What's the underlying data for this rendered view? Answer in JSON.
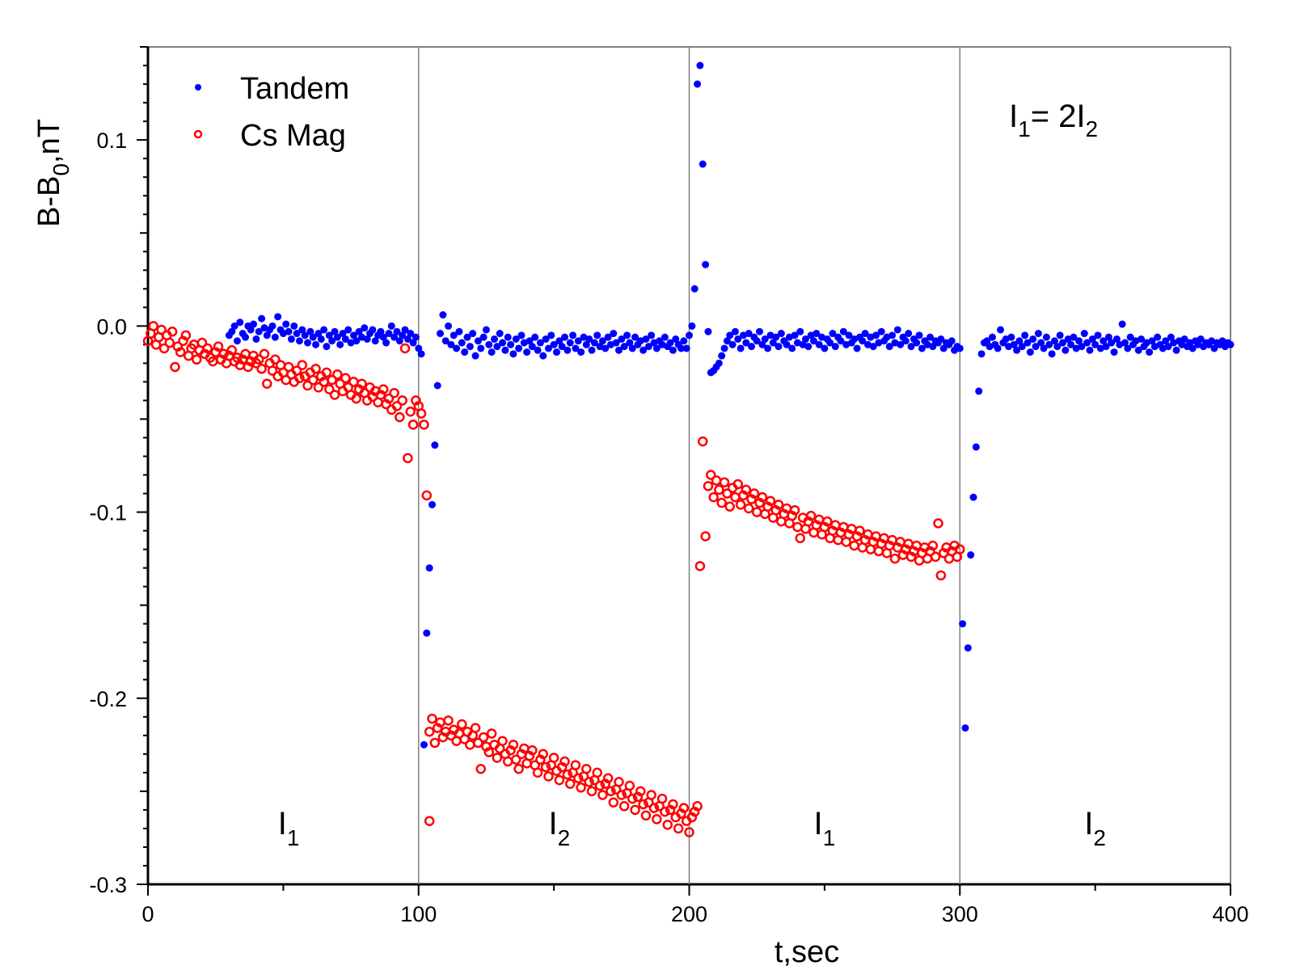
{
  "chart_data": {
    "type": "scatter",
    "title": "",
    "xlabel": "t,sec",
    "ylabel": {
      "main": "B-B",
      "sub": "0",
      "tail": ",nT"
    },
    "xlim": [
      0,
      400
    ],
    "ylim": [
      -0.3,
      0.15
    ],
    "xticks": [
      0,
      100,
      200,
      300,
      400
    ],
    "xtick_labels": [
      "0",
      "100",
      "200",
      "300",
      "400"
    ],
    "yticks": [
      -0.3,
      -0.2,
      -0.1,
      0.0,
      0.1
    ],
    "ytick_labels": [
      "-0.3",
      "-0.2",
      "-0.1",
      "0.0",
      "0.1"
    ],
    "vlines": [
      100,
      200,
      300
    ],
    "grid": false,
    "legend_position": "top-left",
    "series": [
      {
        "name": "Tandem",
        "marker": "filled-circle",
        "color": "#0000ff",
        "segments": [
          {
            "x_start": 30,
            "x_end": 100,
            "step": 1,
            "y": [
              -0.005,
              -0.003,
              0.0,
              -0.008,
              0.002,
              -0.004,
              -0.006,
              0.0,
              -0.002,
              0.001,
              -0.007,
              -0.003,
              0.004,
              -0.001,
              -0.005,
              -0.002,
              0.0,
              -0.006,
              0.005,
              -0.002,
              -0.004,
              0.001,
              -0.003,
              -0.007,
              0.0,
              -0.004,
              -0.008,
              -0.002,
              -0.005,
              -0.009,
              -0.003,
              -0.006,
              -0.01,
              -0.004,
              -0.007,
              -0.002,
              -0.011,
              -0.005,
              -0.008,
              -0.003,
              -0.006,
              -0.01,
              -0.004,
              -0.007,
              -0.002,
              -0.009,
              -0.005,
              -0.008,
              -0.003,
              -0.006,
              -0.001,
              -0.007,
              -0.004,
              -0.002,
              -0.008,
              -0.005,
              -0.003,
              -0.006,
              -0.009,
              -0.004,
              0.0,
              -0.006,
              -0.003,
              -0.008,
              -0.005,
              -0.002,
              -0.007,
              -0.004,
              -0.009,
              -0.006,
              -0.012
            ]
          },
          {
            "x_start": 101,
            "x_end": 108,
            "step": 1,
            "y": [
              -0.015,
              -0.225,
              -0.165,
              -0.13,
              -0.096,
              -0.064,
              -0.032,
              -0.004
            ]
          },
          {
            "x_start": 109,
            "x_end": 198,
            "step": 1,
            "y": [
              0.006,
              -0.008,
              0.0,
              -0.01,
              -0.005,
              -0.012,
              -0.003,
              -0.009,
              -0.014,
              -0.006,
              -0.011,
              -0.004,
              -0.016,
              -0.008,
              -0.012,
              -0.006,
              -0.002,
              -0.01,
              -0.014,
              -0.007,
              -0.011,
              -0.004,
              -0.009,
              -0.013,
              -0.006,
              -0.01,
              -0.015,
              -0.007,
              -0.012,
              -0.005,
              -0.009,
              -0.014,
              -0.008,
              -0.011,
              -0.006,
              -0.013,
              -0.009,
              -0.016,
              -0.007,
              -0.012,
              -0.005,
              -0.01,
              -0.014,
              -0.008,
              -0.011,
              -0.006,
              -0.013,
              -0.009,
              -0.005,
              -0.012,
              -0.008,
              -0.014,
              -0.006,
              -0.01,
              -0.007,
              -0.013,
              -0.009,
              -0.005,
              -0.011,
              -0.008,
              -0.012,
              -0.006,
              -0.01,
              -0.004,
              -0.009,
              -0.013,
              -0.007,
              -0.011,
              -0.005,
              -0.009,
              -0.012,
              -0.006,
              -0.01,
              -0.008,
              -0.013,
              -0.007,
              -0.011,
              -0.005,
              -0.009,
              -0.012,
              -0.008,
              -0.01,
              -0.006,
              -0.011,
              -0.009,
              -0.013,
              -0.007,
              -0.01,
              -0.012,
              -0.008
            ]
          },
          {
            "x_start": 199,
            "x_end": 213,
            "step": 1,
            "y": [
              -0.012,
              -0.005,
              0.0,
              0.02,
              0.13,
              0.14,
              0.087,
              0.033,
              -0.003,
              -0.025,
              -0.024,
              -0.022,
              -0.02,
              -0.016,
              -0.012
            ]
          },
          {
            "x_start": 214,
            "x_end": 300,
            "step": 1,
            "y": [
              -0.008,
              -0.005,
              -0.01,
              -0.003,
              -0.007,
              -0.012,
              -0.005,
              -0.009,
              -0.004,
              -0.011,
              -0.006,
              -0.008,
              -0.003,
              -0.01,
              -0.007,
              -0.012,
              -0.005,
              -0.009,
              -0.006,
              -0.011,
              -0.004,
              -0.008,
              -0.01,
              -0.006,
              -0.012,
              -0.005,
              -0.009,
              -0.003,
              -0.01,
              -0.007,
              -0.011,
              -0.005,
              -0.008,
              -0.004,
              -0.01,
              -0.006,
              -0.012,
              -0.007,
              -0.009,
              -0.004,
              -0.011,
              -0.006,
              -0.008,
              -0.003,
              -0.01,
              -0.005,
              -0.009,
              -0.007,
              -0.012,
              -0.006,
              -0.008,
              -0.004,
              -0.01,
              -0.006,
              -0.011,
              -0.005,
              -0.009,
              -0.003,
              -0.008,
              -0.006,
              -0.011,
              -0.005,
              -0.009,
              -0.002,
              -0.01,
              -0.006,
              -0.008,
              -0.004,
              -0.011,
              -0.007,
              -0.009,
              -0.005,
              -0.012,
              -0.008,
              -0.01,
              -0.006,
              -0.011,
              -0.008,
              -0.009,
              -0.007,
              -0.012,
              -0.009,
              -0.01,
              -0.008,
              -0.013,
              -0.011,
              -0.012
            ]
          },
          {
            "x_start": 301,
            "x_end": 309,
            "step": 1,
            "y": [
              -0.16,
              -0.216,
              -0.173,
              -0.123,
              -0.092,
              -0.065,
              -0.035,
              -0.015,
              -0.009
            ]
          },
          {
            "x_start": 310,
            "x_end": 400,
            "step": 1,
            "y": [
              -0.008,
              -0.011,
              -0.006,
              -0.01,
              -0.012,
              -0.002,
              -0.009,
              -0.007,
              -0.011,
              -0.006,
              -0.01,
              -0.013,
              -0.008,
              -0.011,
              -0.005,
              -0.009,
              -0.014,
              -0.007,
              -0.011,
              -0.004,
              -0.009,
              -0.012,
              -0.006,
              -0.01,
              -0.015,
              -0.008,
              -0.011,
              -0.005,
              -0.009,
              -0.013,
              -0.007,
              -0.01,
              -0.006,
              -0.012,
              -0.008,
              -0.011,
              -0.004,
              -0.009,
              -0.013,
              -0.007,
              -0.01,
              -0.005,
              -0.012,
              -0.008,
              -0.011,
              -0.006,
              -0.009,
              -0.014,
              -0.007,
              -0.01,
              0.001,
              -0.009,
              -0.012,
              -0.006,
              -0.01,
              -0.008,
              -0.013,
              -0.007,
              -0.011,
              -0.009,
              -0.014,
              -0.008,
              -0.011,
              -0.006,
              -0.01,
              -0.012,
              -0.008,
              -0.011,
              -0.006,
              -0.009,
              -0.013,
              -0.008,
              -0.01,
              -0.007,
              -0.011,
              -0.009,
              -0.012,
              -0.008,
              -0.01,
              -0.007,
              -0.011,
              -0.009,
              -0.01,
              -0.008,
              -0.012,
              -0.009,
              -0.01,
              -0.008,
              -0.011,
              -0.009,
              -0.01
            ]
          }
        ]
      },
      {
        "name": "Cs Mag",
        "marker": "open-circle",
        "color": "#ff0000",
        "segments": [
          {
            "x_start": 0,
            "x_end": 98,
            "step": 1,
            "y": [
              -0.008,
              -0.004,
              0.0,
              -0.01,
              -0.006,
              -0.002,
              -0.012,
              -0.005,
              -0.009,
              -0.003,
              -0.022,
              -0.011,
              -0.014,
              -0.008,
              -0.005,
              -0.016,
              -0.012,
              -0.01,
              -0.018,
              -0.013,
              -0.009,
              -0.015,
              -0.012,
              -0.017,
              -0.019,
              -0.014,
              -0.011,
              -0.018,
              -0.015,
              -0.02,
              -0.016,
              -0.013,
              -0.019,
              -0.017,
              -0.021,
              -0.018,
              -0.015,
              -0.022,
              -0.019,
              -0.016,
              -0.02,
              -0.018,
              -0.023,
              -0.015,
              -0.031,
              -0.02,
              -0.024,
              -0.018,
              -0.027,
              -0.021,
              -0.025,
              -0.029,
              -0.022,
              -0.026,
              -0.03,
              -0.024,
              -0.028,
              -0.021,
              -0.027,
              -0.032,
              -0.025,
              -0.029,
              -0.023,
              -0.033,
              -0.027,
              -0.03,
              -0.025,
              -0.034,
              -0.029,
              -0.037,
              -0.026,
              -0.031,
              -0.035,
              -0.028,
              -0.033,
              -0.037,
              -0.03,
              -0.039,
              -0.034,
              -0.031,
              -0.036,
              -0.04,
              -0.033,
              -0.038,
              -0.035,
              -0.041,
              -0.037,
              -0.034,
              -0.042,
              -0.039,
              -0.045,
              -0.036,
              -0.043,
              -0.049,
              -0.04,
              -0.012,
              -0.071,
              -0.046,
              -0.053
            ]
          },
          {
            "x_start": 99,
            "x_end": 104,
            "step": 1,
            "y": [
              -0.04,
              -0.043,
              -0.047,
              -0.053,
              -0.091,
              -0.266
            ]
          },
          {
            "x_start": 104,
            "x_end": 203,
            "step": 1,
            "y": [
              -0.218,
              -0.211,
              -0.224,
              -0.216,
              -0.213,
              -0.221,
              -0.218,
              -0.212,
              -0.22,
              -0.217,
              -0.223,
              -0.219,
              -0.214,
              -0.222,
              -0.218,
              -0.225,
              -0.22,
              -0.216,
              -0.224,
              -0.238,
              -0.221,
              -0.226,
              -0.229,
              -0.219,
              -0.225,
              -0.232,
              -0.227,
              -0.223,
              -0.23,
              -0.234,
              -0.228,
              -0.225,
              -0.233,
              -0.238,
              -0.23,
              -0.227,
              -0.235,
              -0.231,
              -0.228,
              -0.236,
              -0.24,
              -0.233,
              -0.23,
              -0.237,
              -0.242,
              -0.236,
              -0.232,
              -0.239,
              -0.244,
              -0.237,
              -0.234,
              -0.241,
              -0.246,
              -0.24,
              -0.236,
              -0.243,
              -0.248,
              -0.242,
              -0.238,
              -0.245,
              -0.25,
              -0.244,
              -0.24,
              -0.247,
              -0.252,
              -0.246,
              -0.243,
              -0.25,
              -0.256,
              -0.249,
              -0.245,
              -0.252,
              -0.258,
              -0.251,
              -0.247,
              -0.254,
              -0.26,
              -0.253,
              -0.25,
              -0.257,
              -0.263,
              -0.256,
              -0.252,
              -0.259,
              -0.265,
              -0.258,
              -0.254,
              -0.261,
              -0.268,
              -0.26,
              -0.257,
              -0.264,
              -0.27,
              -0.262,
              -0.259,
              -0.266,
              -0.272,
              -0.264,
              -0.261,
              -0.258
            ]
          },
          {
            "x_start": 204,
            "x_end": 206,
            "step": 1,
            "y": [
              -0.129,
              -0.062,
              -0.113
            ]
          },
          {
            "x_start": 207,
            "x_end": 300,
            "step": 1,
            "y": [
              -0.086,
              -0.08,
              -0.092,
              -0.083,
              -0.088,
              -0.095,
              -0.084,
              -0.09,
              -0.097,
              -0.087,
              -0.092,
              -0.085,
              -0.096,
              -0.091,
              -0.088,
              -0.098,
              -0.093,
              -0.09,
              -0.1,
              -0.095,
              -0.092,
              -0.101,
              -0.097,
              -0.094,
              -0.103,
              -0.099,
              -0.096,
              -0.105,
              -0.101,
              -0.098,
              -0.106,
              -0.102,
              -0.099,
              -0.108,
              -0.114,
              -0.103,
              -0.109,
              -0.105,
              -0.102,
              -0.111,
              -0.107,
              -0.104,
              -0.112,
              -0.108,
              -0.105,
              -0.114,
              -0.11,
              -0.107,
              -0.115,
              -0.111,
              -0.108,
              -0.116,
              -0.112,
              -0.109,
              -0.118,
              -0.113,
              -0.11,
              -0.119,
              -0.115,
              -0.112,
              -0.12,
              -0.116,
              -0.113,
              -0.121,
              -0.117,
              -0.114,
              -0.122,
              -0.118,
              -0.115,
              -0.125,
              -0.119,
              -0.116,
              -0.123,
              -0.12,
              -0.117,
              -0.124,
              -0.121,
              -0.118,
              -0.126,
              -0.122,
              -0.119,
              -0.125,
              -0.121,
              -0.118,
              -0.124,
              -0.106,
              -0.134,
              -0.122,
              -0.119,
              -0.125,
              -0.121,
              -0.118,
              -0.124,
              -0.12
            ]
          }
        ]
      }
    ],
    "annotations": [
      {
        "main": "I",
        "sub": "1",
        "x": 52,
        "y": -0.273
      },
      {
        "main": "I",
        "sub": "2",
        "x": 152,
        "y": -0.273
      },
      {
        "main": "I",
        "sub": "1",
        "x": 250,
        "y": -0.273
      },
      {
        "main": "I",
        "sub": "2",
        "x": 350,
        "y": -0.273
      }
    ],
    "equation": {
      "p1": "I",
      "s1": "1",
      "p2": "= 2I",
      "s2": "2"
    }
  }
}
